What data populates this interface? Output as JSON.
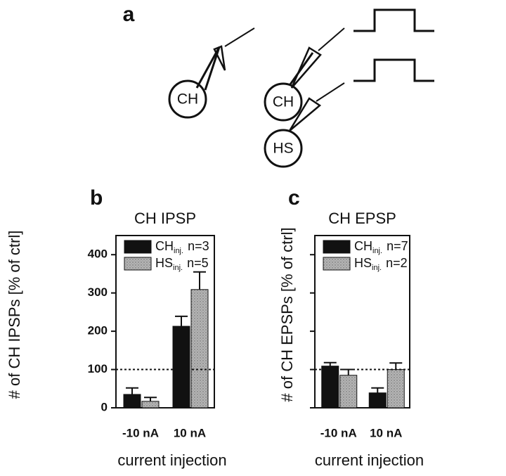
{
  "diagram": {
    "panel": "a",
    "cells": [
      "CH",
      "CH",
      "HS"
    ]
  },
  "chart_data": [
    {
      "type": "bar",
      "panel": "b",
      "title": "CH IPSP",
      "xlabel": "current injection",
      "ylabel": "# of CH IPSPs [% of ctrl]",
      "categories": [
        "-10 nA",
        "10 nA"
      ],
      "series": [
        {
          "name": "CH",
          "sub": "inj.",
          "note": "n=3",
          "color": "#111111",
          "values": [
            35,
            213
          ],
          "errors": [
            17,
            26
          ]
        },
        {
          "name": "HS",
          "sub": "inj.",
          "note": "n=5",
          "color": "#a8a8a8",
          "values": [
            17,
            309
          ],
          "errors": [
            10,
            46
          ]
        }
      ],
      "ylim": [
        0,
        450
      ],
      "yticks": [
        0,
        100,
        200,
        300,
        400
      ],
      "show_ytick_labels": true,
      "reference_line": 100
    },
    {
      "type": "bar",
      "panel": "c",
      "title": "CH EPSP",
      "xlabel": "current injection",
      "ylabel": "# of CH EPSPs [% of ctrl]",
      "categories": [
        "-10 nA",
        "10 nA"
      ],
      "series": [
        {
          "name": "CH",
          "sub": "inj.",
          "note": "n=7",
          "color": "#111111",
          "values": [
            109,
            39
          ],
          "errors": [
            9,
            13
          ]
        },
        {
          "name": "HS",
          "sub": "inj.",
          "note": "n=2",
          "color": "#a8a8a8",
          "values": [
            85,
            100
          ],
          "errors": [
            15,
            17
          ]
        }
      ],
      "ylim": [
        0,
        450
      ],
      "yticks": [
        0,
        100,
        200,
        300,
        400
      ],
      "show_ytick_labels": false,
      "reference_line": 100
    }
  ]
}
